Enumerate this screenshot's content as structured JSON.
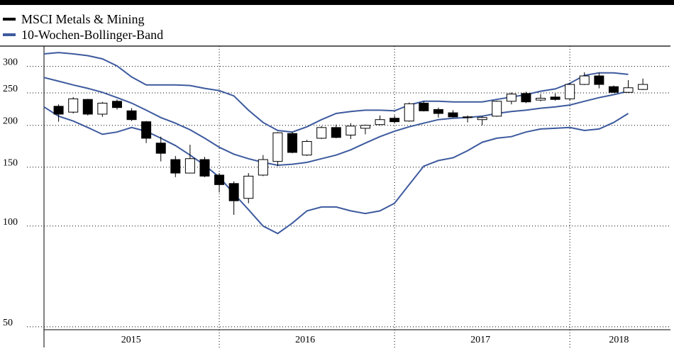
{
  "chart_data": {
    "type": "candlestick",
    "x": [
      2015,
      2015.0833,
      2015.1667,
      2015.25,
      2015.3333,
      2015.4167,
      2015.5,
      2015.5833,
      2015.6667,
      2015.75,
      2015.8333,
      2015.9167,
      2016,
      2016.0833,
      2016.1667,
      2016.25,
      2016.3333,
      2016.4167,
      2016.5,
      2016.5833,
      2016.6667,
      2016.75,
      2016.8333,
      2016.9167,
      2017,
      2017.0833,
      2017.1667,
      2017.25,
      2017.3333,
      2017.4167,
      2017.5,
      2017.5833,
      2017.6667,
      2017.75,
      2017.8333,
      2017.9167,
      2018,
      2018.0833,
      2018.1667,
      2018.25,
      2018.3333,
      2018.4167
    ],
    "xlim": [
      2015,
      2018.574
    ],
    "xticks": [
      {
        "value": 2015.497,
        "label": "2015"
      },
      {
        "value": 2016.49,
        "label": "2016"
      },
      {
        "value": 2017.49,
        "label": "2017"
      },
      {
        "value": 2018.28,
        "label": "2018"
      }
    ],
    "xgrid": [
      2016,
      2017,
      2018
    ],
    "log_scale": true,
    "ylim": [
      49,
      345
    ],
    "yticks": [
      50,
      100,
      150,
      200,
      250,
      300
    ],
    "grid": true,
    "legend": "top-left",
    "candles": {
      "name": "MSCI Metals & Mining",
      "color": "#000000",
      "open": [
        null,
        228,
        219,
        239,
        216,
        236,
        221,
        205,
        177,
        158,
        144,
        158,
        142,
        134,
        121,
        142,
        156,
        189,
        163,
        183,
        197,
        187,
        196,
        201,
        210,
        206,
        233,
        223,
        218,
        212,
        208,
        213,
        236,
        249,
        238,
        243,
        240,
        265,
        281,
        261,
        251,
        256
      ],
      "high": [
        null,
        231,
        243,
        240,
        235,
        239,
        225,
        206,
        185,
        162,
        175,
        161,
        144,
        136,
        144,
        163,
        191,
        191,
        181,
        199,
        201,
        203,
        201,
        214,
        214,
        234,
        236,
        226,
        222,
        214,
        213,
        237,
        251,
        252,
        248,
        249,
        268,
        288,
        287,
        263,
        273,
        276
      ],
      "low": [
        null,
        205,
        217,
        214,
        212,
        223,
        206,
        177,
        156,
        140,
        144,
        140,
        126,
        108,
        117,
        141,
        151,
        165,
        162,
        182,
        183,
        182,
        188,
        200,
        203,
        205,
        220,
        211,
        211,
        204,
        200,
        212,
        231,
        233,
        236,
        237,
        237,
        264,
        258,
        250,
        250,
        255
      ],
      "close": [
        null,
        216,
        240,
        216,
        233,
        226,
        208,
        183,
        165,
        144,
        159,
        141,
        133,
        119,
        141,
        158,
        190,
        166,
        179,
        197,
        184,
        199,
        200,
        208,
        205,
        232,
        221,
        217,
        212,
        211,
        211,
        236,
        248,
        235,
        241,
        239,
        265,
        281,
        265,
        251,
        259,
        265
      ]
    },
    "bands": {
      "name": "10-Wochen-Bollinger-Band",
      "color": "#3d5a9e",
      "upper": [
        327,
        330,
        327,
        323,
        316,
        301,
        279,
        264,
        264,
        264,
        263,
        258,
        254,
        245,
        222,
        204,
        193,
        191,
        198,
        208,
        217,
        220,
        222,
        222,
        221,
        230,
        236,
        236,
        235,
        235,
        235,
        239,
        243,
        247,
        253,
        257,
        267,
        282,
        287,
        287,
        284,
        null
      ],
      "middle": [
        278,
        271,
        264,
        258,
        251,
        242,
        233,
        222,
        211,
        203,
        194,
        183,
        172,
        164,
        159,
        155,
        152,
        153,
        155,
        159,
        163,
        169,
        177,
        185,
        192,
        198,
        203,
        208,
        210,
        211,
        213,
        217,
        220,
        222,
        225,
        227,
        230,
        236,
        242,
        247,
        253,
        null
      ],
      "lower": [
        227,
        213,
        206,
        197,
        188,
        191,
        197,
        192,
        183,
        174,
        163,
        152,
        140,
        125,
        112,
        100,
        95,
        102,
        111,
        114,
        114,
        111,
        109,
        111,
        117,
        133,
        151,
        157,
        160,
        168,
        178,
        183,
        185,
        191,
        195,
        196,
        197,
        193,
        195,
        204,
        217,
        null
      ]
    }
  }
}
